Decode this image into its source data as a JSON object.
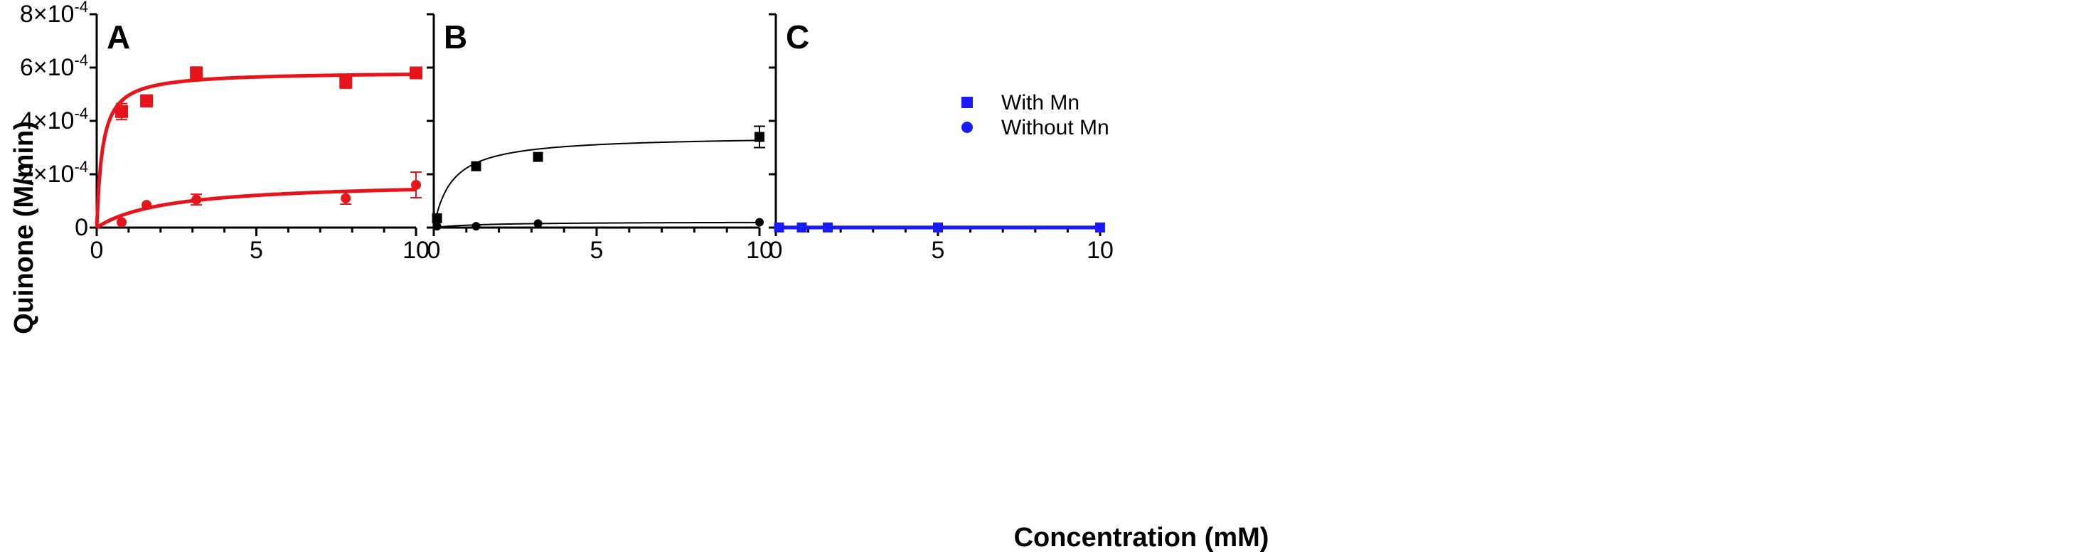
{
  "chart_data": {
    "type": "scatter",
    "ylabel": "Quinone (M/min)",
    "xlabel": "Concentration (mM)",
    "ytick_labels": [
      {
        "value": 0,
        "label": "0"
      },
      {
        "value": 0.0002,
        "mant": "2×10",
        "exp": "-4"
      },
      {
        "value": 0.0004,
        "mant": "4×10",
        "exp": "-4"
      },
      {
        "value": 0.0006,
        "mant": "6×10",
        "exp": "-4"
      },
      {
        "value": 0.0008,
        "mant": "8×10",
        "exp": "-4"
      }
    ],
    "xticks": [
      0,
      5,
      10
    ],
    "ylim": [
      0,
      0.0008
    ],
    "xlim": [
      0,
      10
    ],
    "legend": {
      "position": "top-right",
      "entries": [
        {
          "label": "With Mn",
          "marker": "square"
        },
        {
          "label": "Without Mn",
          "marker": "circle"
        }
      ]
    },
    "panels": [
      {
        "label": "A",
        "color": "#e8141c",
        "series": [
          {
            "name": "With Mn",
            "marker": "square",
            "points": [
              {
                "x": 0.78,
                "y": 0.000435,
                "err": 3e-05
              },
              {
                "x": 1.56,
                "y": 0.000475,
                "err": 2.2e-05
              },
              {
                "x": 3.12,
                "y": 0.00058,
                "err": 2.2e-05
              },
              {
                "x": 7.8,
                "y": 0.000545,
                "err": 2.2e-05
              },
              {
                "x": 10,
                "y": 0.00058,
                "err": 2e-05
              }
            ],
            "fit": {
              "model": "michaelis-menten",
              "vmax": 0.000585,
              "km": 0.18
            }
          },
          {
            "name": "Without Mn",
            "marker": "circle",
            "points": [
              {
                "x": 0.78,
                "y": 2e-05,
                "err": 0
              },
              {
                "x": 1.56,
                "y": 8.5e-05,
                "err": 0
              },
              {
                "x": 3.12,
                "y": 0.000105,
                "err": 2e-05
              },
              {
                "x": 7.8,
                "y": 0.00011,
                "err": 2.2e-05
              },
              {
                "x": 10,
                "y": 0.00016,
                "err": 4.8e-05
              }
            ],
            "fit": {
              "model": "michaelis-menten",
              "vmax": 0.000174,
              "km": 2.2
            }
          }
        ]
      },
      {
        "label": "B",
        "color": "#000000",
        "series": [
          {
            "name": "With Mn",
            "marker": "square",
            "points": [
              {
                "x": 0.1,
                "y": 3.5e-05,
                "err": 0
              },
              {
                "x": 1.3,
                "y": 0.00023,
                "err": 0
              },
              {
                "x": 3.2,
                "y": 0.000265,
                "err": 0
              },
              {
                "x": 10,
                "y": 0.00034,
                "err": 4e-05
              }
            ],
            "fit": {
              "model": "michaelis-menten",
              "vmax": 0.000345,
              "km": 0.55
            }
          },
          {
            "name": "Without Mn",
            "marker": "circle",
            "points": [
              {
                "x": 0.1,
                "y": 5e-06,
                "err": 0
              },
              {
                "x": 1.3,
                "y": 5e-06,
                "err": 0
              },
              {
                "x": 3.2,
                "y": 1.5e-05,
                "err": 0
              },
              {
                "x": 10,
                "y": 2e-05,
                "err": 0
              }
            ],
            "fit": {
              "model": "michaelis-menten",
              "vmax": 2.2e-05,
              "km": 1.5
            }
          }
        ]
      },
      {
        "label": "C",
        "color": "#1a1aff",
        "series": [
          {
            "name": "With Mn",
            "marker": "square",
            "points": [
              {
                "x": 0.1,
                "y": 5e-07,
                "err": 0
              },
              {
                "x": 0.8,
                "y": 5e-07,
                "err": 0
              },
              {
                "x": 1.6,
                "y": 5e-07,
                "err": 0
              },
              {
                "x": 5,
                "y": 5e-07,
                "err": 0
              },
              {
                "x": 10,
                "y": 5e-07,
                "err": 0
              }
            ],
            "fit": {
              "model": "linear",
              "slope": 0,
              "intercept": 5e-07
            }
          },
          {
            "name": "Without Mn",
            "marker": "circle",
            "points": [
              {
                "x": 0.1,
                "y": 0.0,
                "err": 0
              },
              {
                "x": 0.8,
                "y": 0.0,
                "err": 0
              },
              {
                "x": 1.6,
                "y": 0.0,
                "err": 0
              },
              {
                "x": 5,
                "y": 0.0,
                "err": 0
              },
              {
                "x": 10,
                "y": 0.0,
                "err": 0
              }
            ],
            "fit": {
              "model": "linear",
              "slope": 0,
              "intercept": 0.0
            }
          }
        ]
      }
    ]
  }
}
